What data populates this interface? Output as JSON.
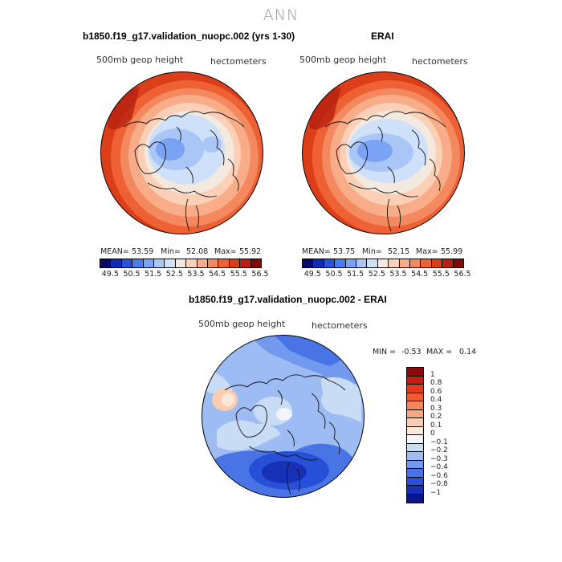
{
  "page_title": "ANN",
  "panels": [
    {
      "title": "b1850.f19_g17.validation_nuopc.002 (yrs 1-30)",
      "variable": "500mb geop height",
      "units": "hectometers",
      "mean_label": "MEAN=",
      "mean": "53.59",
      "min_label": "Min=",
      "min": "52.08",
      "max_label": "Max=",
      "max": "55.92"
    },
    {
      "title": "ERAI",
      "variable": "500mb geop height",
      "units": "hectometers",
      "mean_label": "MEAN=",
      "mean": "53.75",
      "min_label": "Min=",
      "min": "52.15",
      "max_label": "Max=",
      "max": "55.99"
    }
  ],
  "top_colorbar": {
    "ticks": [
      "49.5",
      "50.5",
      "51.5",
      "52.5",
      "53.5",
      "54.5",
      "55.5",
      "56.5"
    ],
    "colors": [
      "#08086e",
      "#0f2bb5",
      "#2753d9",
      "#4a7cf0",
      "#7aa2f5",
      "#a9c6f7",
      "#cfe1fa",
      "#f4e9de",
      "#fbd0b6",
      "#f8ad88",
      "#f4885f",
      "#ee6134",
      "#dd3e1a",
      "#b7200f",
      "#7f0a05"
    ]
  },
  "diff_panel": {
    "title": "b1850.f19_g17.validation_nuopc.002 - ERAI",
    "variable": "500mb geop height",
    "units": "hectometers",
    "min_label": "MIN =",
    "min": "-0.53",
    "max_label": "MAX =",
    "max": "0.14"
  },
  "diff_colorbar": {
    "ticks": [
      "1",
      "0.8",
      "0.6",
      "0.4",
      "0.3",
      "0.2",
      "0.1",
      "0",
      "−0.1",
      "−0.2",
      "−0.3",
      "−0.4",
      "−0.6",
      "−0.8",
      "−1"
    ],
    "colors": [
      "#8c0a0a",
      "#c41d0f",
      "#e23a1c",
      "#f25a33",
      "#f7845b",
      "#f9a982",
      "#fbcdb0",
      "#fce8d8",
      "#f2f5fb",
      "#c9dcf6",
      "#9dbcf4",
      "#7199ee",
      "#4874e6",
      "#2650d8",
      "#1730b8",
      "#0a1690"
    ]
  }
}
